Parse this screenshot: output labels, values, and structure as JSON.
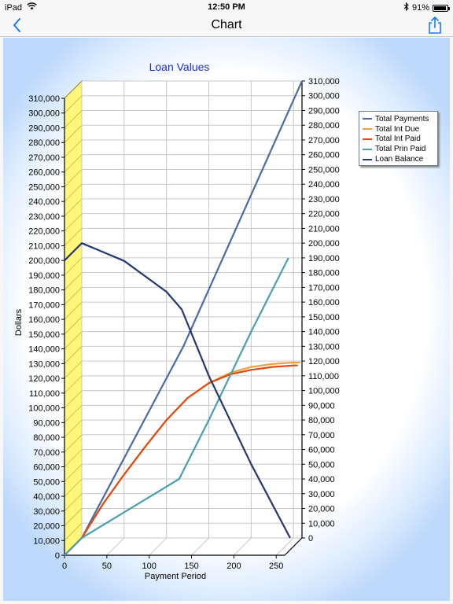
{
  "status": {
    "device": "iPad",
    "time": "12:50 PM",
    "battery": "91%",
    "battery_level": 0.91
  },
  "nav": {
    "title": "Chart",
    "back_icon": "chevron-left-icon",
    "share_icon": "share-icon",
    "accent": "#1a7cf0"
  },
  "chart_data": {
    "type": "line",
    "title": "Loan Values",
    "xlabel": "Payment Period",
    "ylabel": "Dollars",
    "xlim": [
      0,
      260
    ],
    "ylim": [
      0,
      310000
    ],
    "x_ticks": [
      0,
      50,
      100,
      150,
      200,
      250
    ],
    "y_ticks": [
      0,
      10000,
      20000,
      30000,
      40000,
      50000,
      60000,
      70000,
      80000,
      90000,
      100000,
      110000,
      120000,
      130000,
      140000,
      150000,
      160000,
      170000,
      180000,
      190000,
      200000,
      210000,
      220000,
      230000,
      240000,
      250000,
      260000,
      270000,
      280000,
      290000,
      300000,
      310000
    ],
    "grid": true,
    "legend": "top-right",
    "series": [
      {
        "name": "Total Payments",
        "color": "#4a6aa8",
        "points": [
          [
            0,
            0
          ],
          [
            120,
            130000
          ],
          [
            260,
            310000
          ]
        ]
      },
      {
        "name": "Total Int Due",
        "color": "#f0a040",
        "points": [
          [
            0,
            0
          ],
          [
            25,
            23000
          ],
          [
            50,
            43000
          ],
          [
            75,
            62000
          ],
          [
            100,
            80000
          ],
          [
            125,
            95000
          ],
          [
            150,
            105000
          ],
          [
            175,
            112000
          ],
          [
            200,
            116000
          ],
          [
            225,
            118000
          ],
          [
            250,
            119000
          ],
          [
            258,
            119000
          ]
        ]
      },
      {
        "name": "Total Int Paid",
        "color": "#e04a10",
        "points": [
          [
            0,
            0
          ],
          [
            25,
            23000
          ],
          [
            50,
            43000
          ],
          [
            75,
            62000
          ],
          [
            100,
            80000
          ],
          [
            125,
            95000
          ],
          [
            150,
            105000
          ],
          [
            175,
            111000
          ],
          [
            200,
            114000
          ],
          [
            225,
            116000
          ],
          [
            250,
            117000
          ],
          [
            255,
            117000
          ]
        ]
      },
      {
        "name": "Total Prin Paid",
        "color": "#4aa0b0",
        "points": [
          [
            0,
            0
          ],
          [
            115,
            40000
          ],
          [
            150,
            80000
          ],
          [
            200,
            140000
          ],
          [
            244,
            190000
          ]
        ]
      },
      {
        "name": "Loan Balance",
        "color": "#233a70",
        "points": [
          [
            0,
            200000
          ],
          [
            50,
            188000
          ],
          [
            100,
            167000
          ],
          [
            118,
            155000
          ],
          [
            150,
            110000
          ],
          [
            200,
            50000
          ],
          [
            246,
            0
          ]
        ]
      }
    ]
  }
}
